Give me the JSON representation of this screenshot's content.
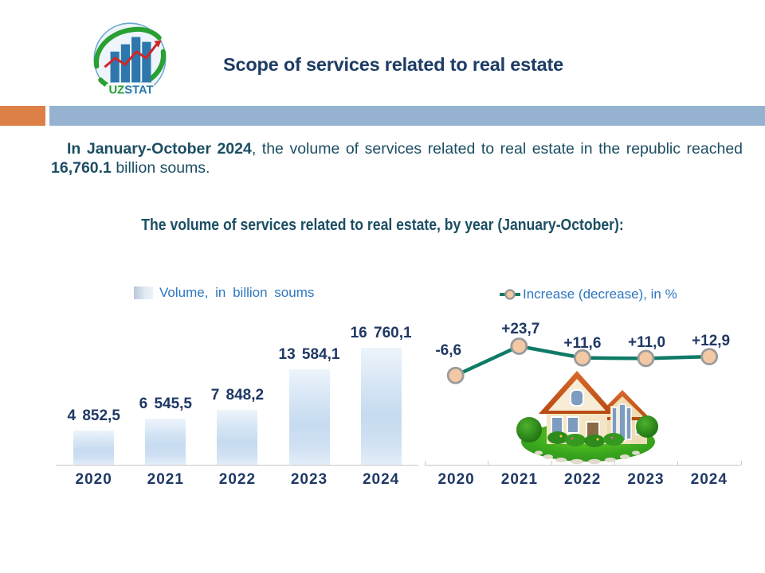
{
  "colors": {
    "title": "#1d3c64",
    "body_text": "#1c4e63",
    "accent_orange": "#dd8047",
    "accent_blue": "#95b3d0",
    "number_navy": "#1f3864",
    "legend_blue": "#2e77c0",
    "line_teal": "#0f7b66",
    "marker_fill": "#f3c9a5",
    "marker_ring": "#9b9b9b",
    "axis_gray": "#c9c9c9"
  },
  "logo": {
    "uz": "UZ",
    "stat": "STAT"
  },
  "header": {
    "title": "Scope of services related to real estate"
  },
  "intro": {
    "lead_bold": "In January-October 2024",
    "middle": ", the volume of services related to real estate in the republic reached ",
    "value_bold": "16,760.1",
    "tail": " billion soums."
  },
  "section_heading": "The volume of services related to real estate, by year (January-October):",
  "chart_data": [
    {
      "type": "bar",
      "legend": "Volume, in billion soums",
      "categories": [
        "2020",
        "2021",
        "2022",
        "2023",
        "2024"
      ],
      "values": [
        4852.5,
        6545.5,
        7848.2,
        13584.1,
        16760.1
      ],
      "value_labels": [
        "4 852,5",
        "6 545,5",
        "7 848,2",
        "13 584,1",
        "16 760,1"
      ],
      "ylim": [
        0,
        16760.1
      ],
      "grid": false,
      "legend_position": "top"
    },
    {
      "type": "line",
      "legend": "Increase (decrease), in %",
      "categories": [
        "2020",
        "2021",
        "2022",
        "2023",
        "2024"
      ],
      "values": [
        -6.6,
        23.7,
        11.6,
        11.0,
        12.9
      ],
      "value_labels": [
        "-6,6",
        "+23,7",
        "+11,6",
        "+11,0",
        "+12,9"
      ],
      "grid": false,
      "legend_position": "top"
    }
  ]
}
